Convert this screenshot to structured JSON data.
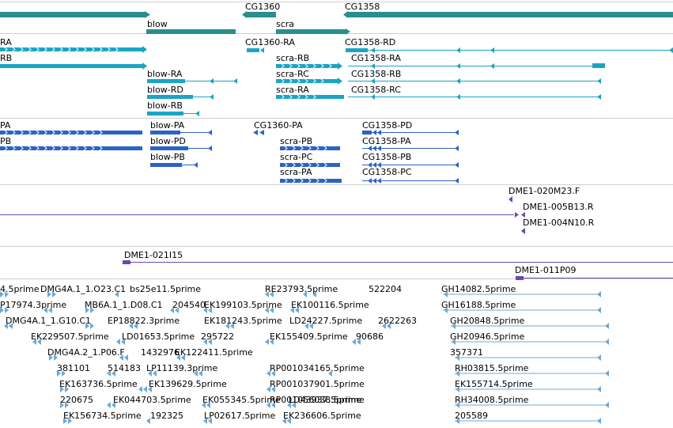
{
  "colors": {
    "gene": "#2a8e8e",
    "transcript": "#1ba4c4",
    "protein": "#2c63c4",
    "clone": "#6a4aa8",
    "est": "#6fa8d6",
    "separator": "#cfcfcf"
  },
  "tracks": {
    "genes": {
      "labels": [
        "blow",
        "CG1360",
        "scra",
        "CG1358"
      ]
    },
    "transcripts": {
      "labels": [
        "RA",
        "RB",
        "CG1360-RA",
        "CG1358-RD",
        "scra-RB",
        "CG1358-RA",
        "blow-RA",
        "scra-RC",
        "CG1358-RB",
        "blow-RD",
        "scra-RA",
        "CG1358-RC",
        "blow-RB"
      ]
    },
    "proteins": {
      "labels": [
        "PA",
        "PB",
        "blow-PA",
        "CG1360-PA",
        "CG1358-PD",
        "blow-PD",
        "scra-PB",
        "CG1358-PA",
        "blow-PB",
        "scra-PC",
        "CG1358-PB",
        "scra-PA",
        "CG1358-PC"
      ]
    },
    "clones_a": {
      "labels": [
        "DME1-020M23.F",
        "DME1-005B13.R",
        "DME1-004N10.R"
      ]
    },
    "clones_b": {
      "labels": [
        "DME1-021I15",
        "DME1-011P09"
      ]
    },
    "ests": {
      "labels": [
        "4.5prime",
        "DMG4A.1_1.O23.C1",
        "bs25e11.5prime",
        "RE23793.5prime",
        "522204",
        "GH14082.5prime",
        "P17974.3prime",
        "MB6A.1_1.D08.C1",
        "204540",
        "EK199103.5prime",
        "EK100116.5prime",
        "GH16188.5prime",
        "DMG4A.1_1.G10.C1",
        "EP18822.3prime",
        "EK181243.5prime",
        "LD24227.5prime",
        "2622263",
        "GH20848.5prime",
        "EK229507.5prime",
        "LD01653.5prime",
        "295722",
        "EK155409.5prime",
        "90686",
        "GH20946.5prime",
        "DMG4A.2_1.P06.F",
        "1432976",
        "EK122411.5prime",
        "357371",
        "381101",
        "514183",
        "LP11139.3prime",
        "RP001034165.5prime",
        "RH03815.5prime",
        "RP001037901.5prime",
        "EK155714.5prime",
        "EK163736.5prime",
        "EK139629.5prime",
        "RP001056038.5prime",
        "220675",
        "EK044703.5prime",
        "EK055345.5prime",
        "LD43937.5prime",
        "RH34008.5prime",
        "EK156734.5prime",
        "192325",
        "LP02617.5prime",
        "EK236606.5prime",
        "205589"
      ]
    }
  }
}
